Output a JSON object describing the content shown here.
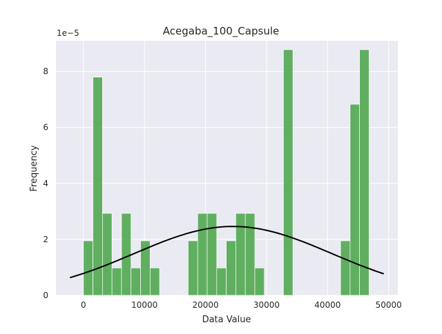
{
  "chart_data": {
    "type": "bar",
    "title": "Acegaba_100_Capsule",
    "xlabel": "Data Value",
    "ylabel": "Frequency",
    "y_scale_label": "1e−5",
    "xlim": [
      -4500,
      51500
    ],
    "ylim": [
      0,
      9.1
    ],
    "x_ticks": [
      0,
      10000,
      20000,
      30000,
      40000,
      50000
    ],
    "x_tick_labels": [
      "0",
      "10000",
      "20000",
      "30000",
      "40000",
      "50000"
    ],
    "y_ticks": [
      0,
      2,
      4,
      6,
      8
    ],
    "y_tick_labels": [
      "0",
      "2",
      "4",
      "6",
      "8"
    ],
    "grid": true,
    "bar_color": "#4ca64c",
    "curve_color": "#000000",
    "plot_background": "#eaeaf2",
    "bins": [
      {
        "start": 0,
        "end": 1560,
        "value": 1.95
      },
      {
        "start": 1560,
        "end": 3120,
        "value": 7.8
      },
      {
        "start": 3120,
        "end": 4680,
        "value": 2.93
      },
      {
        "start": 4680,
        "end": 6240,
        "value": 0.98
      },
      {
        "start": 6240,
        "end": 7800,
        "value": 2.93
      },
      {
        "start": 7800,
        "end": 9360,
        "value": 0.98
      },
      {
        "start": 9360,
        "end": 10920,
        "value": 1.95
      },
      {
        "start": 10920,
        "end": 12480,
        "value": 0.98
      },
      {
        "start": 12480,
        "end": 14040,
        "value": 0
      },
      {
        "start": 14040,
        "end": 15600,
        "value": 0
      },
      {
        "start": 15600,
        "end": 17160,
        "value": 0
      },
      {
        "start": 17160,
        "end": 18720,
        "value": 1.95
      },
      {
        "start": 18720,
        "end": 20280,
        "value": 2.93
      },
      {
        "start": 20280,
        "end": 21840,
        "value": 2.93
      },
      {
        "start": 21840,
        "end": 23400,
        "value": 0.98
      },
      {
        "start": 23400,
        "end": 24960,
        "value": 1.95
      },
      {
        "start": 24960,
        "end": 26520,
        "value": 2.93
      },
      {
        "start": 26520,
        "end": 28080,
        "value": 2.93
      },
      {
        "start": 28080,
        "end": 29640,
        "value": 0.98
      },
      {
        "start": 29640,
        "end": 31200,
        "value": 0
      },
      {
        "start": 31200,
        "end": 32760,
        "value": 0
      },
      {
        "start": 32760,
        "end": 34320,
        "value": 8.78
      },
      {
        "start": 34320,
        "end": 35880,
        "value": 0
      },
      {
        "start": 35880,
        "end": 37440,
        "value": 0
      },
      {
        "start": 37440,
        "end": 39000,
        "value": 0
      },
      {
        "start": 39000,
        "end": 40560,
        "value": 0
      },
      {
        "start": 40560,
        "end": 42120,
        "value": 0
      },
      {
        "start": 42120,
        "end": 43680,
        "value": 1.95
      },
      {
        "start": 43680,
        "end": 45240,
        "value": 6.83
      },
      {
        "start": 45240,
        "end": 46800,
        "value": 8.78
      }
    ],
    "curve": {
      "type": "normal",
      "mean": 24500,
      "std": 16200,
      "x_range": [
        -2200,
        49200
      ]
    }
  }
}
